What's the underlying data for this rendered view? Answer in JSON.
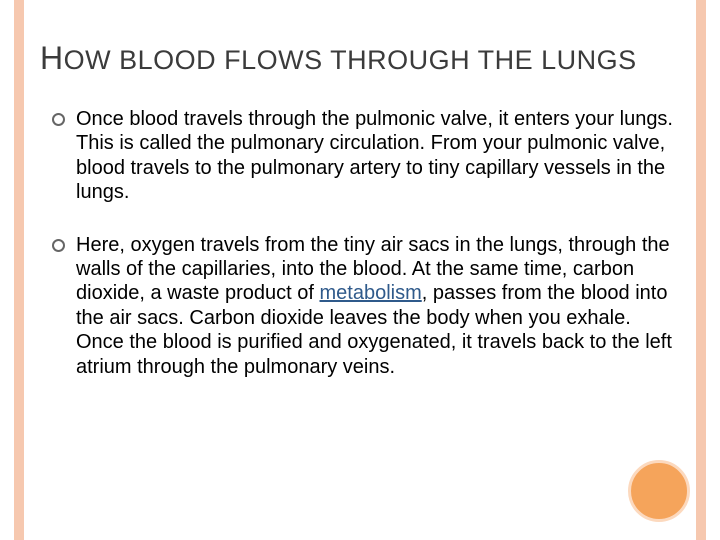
{
  "theme": {
    "stripe_color": "#f6c8af",
    "circle_fill": "#f5a45b",
    "circle_border": "#fcd9be",
    "title_color": "#3b3b3b",
    "text_color": "#000000",
    "link_color": "#2f5a8b",
    "background": "#ffffff"
  },
  "title": {
    "cap1": "H",
    "rest1": "OW",
    "rest2": " BLOOD FLOWS THROUGH THE LUNGS"
  },
  "bullets": [
    {
      "text": "Once blood travels through the pulmonic valve, it enters your lungs. This is called the pulmonary circulation. From your pulmonic valve, blood travels to the pulmonary artery to tiny capillary vessels in the lungs."
    },
    {
      "pre": "Here, oxygen travels from the tiny air sacs in the lungs, through the walls of the capillaries, into the blood. At the same time, carbon dioxide, a waste product of ",
      "link": "metabolism",
      "post": ", passes from the blood into the air sacs. Carbon dioxide leaves the body when you exhale. Once the blood is purified and oxygenated, it travels back to the left atrium through the pulmonary veins."
    }
  ]
}
